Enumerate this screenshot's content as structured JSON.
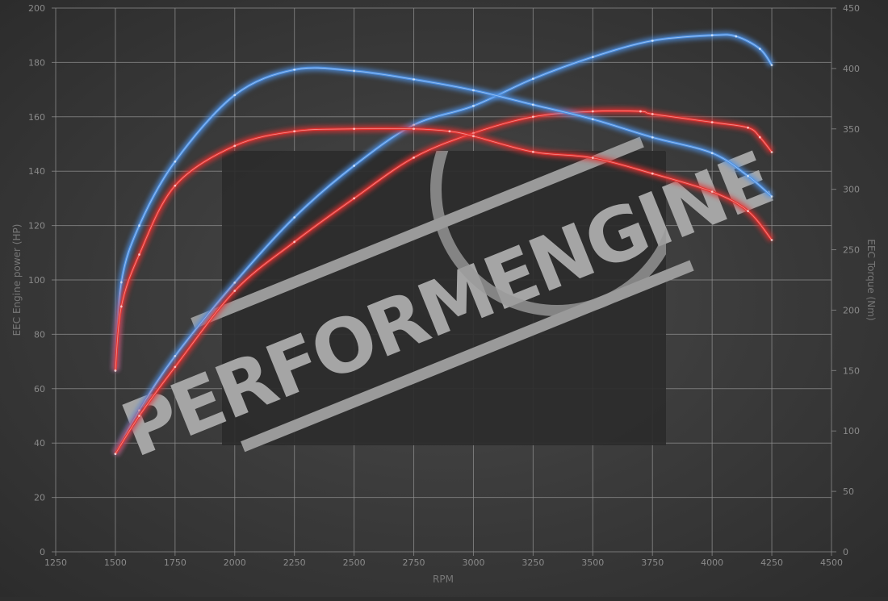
{
  "chart_data": {
    "type": "line",
    "title": "",
    "xlabel": "RPM",
    "ylabel_left": "EEC Engine power (HP)",
    "ylabel_right": "EEC Torque (Nm)",
    "xlim": [
      1250,
      4500
    ],
    "ylim_left": [
      0,
      200
    ],
    "ylim_right": [
      0,
      450
    ],
    "x_ticks": [
      1250,
      1500,
      1750,
      2000,
      2250,
      2500,
      2750,
      3000,
      3250,
      3500,
      3750,
      4000,
      4250,
      4500
    ],
    "y_left_ticks": [
      0,
      20,
      40,
      60,
      80,
      100,
      120,
      140,
      160,
      180,
      200
    ],
    "y_right_ticks": [
      0,
      50,
      100,
      150,
      200,
      250,
      300,
      350,
      400,
      450
    ],
    "grid": true,
    "legend": "none",
    "watermark": "PERFORMENGINE",
    "colors": {
      "tuned": "#4f93e6",
      "stock": "#e53330"
    },
    "series": [
      {
        "axis": "left",
        "color": "#4f93e6",
        "x": [
          1500,
          1600,
          1750,
          2000,
          2250,
          2500,
          2750,
          3000,
          3250,
          3500,
          3750,
          4000,
          4100,
          4200,
          4250
        ],
        "y": [
          36,
          52,
          72,
          99,
          123,
          142,
          157,
          164,
          174,
          182,
          188,
          190,
          189.6,
          185,
          179
        ]
      },
      {
        "axis": "left",
        "color": "#e53330",
        "x": [
          1500,
          1600,
          1750,
          2000,
          2250,
          2500,
          2750,
          3000,
          3250,
          3500,
          3700,
          3750,
          4000,
          4150,
          4200,
          4250
        ],
        "y": [
          36,
          50,
          68,
          96,
          114,
          130,
          145,
          154,
          160,
          162,
          162,
          161,
          158,
          156,
          152.5,
          147
        ]
      },
      {
        "axis": "right",
        "color": "#4f93e6",
        "x": [
          1500,
          1525,
          1600,
          1750,
          2000,
          2250,
          2500,
          2750,
          3000,
          3250,
          3500,
          3750,
          4000,
          4150,
          4250
        ],
        "y": [
          150,
          223,
          270,
          323,
          378,
          399,
          398,
          391,
          382,
          370,
          358,
          343,
          330,
          311,
          294
        ]
      },
      {
        "axis": "right",
        "color": "#e53330",
        "x": [
          1500,
          1525,
          1600,
          1750,
          2000,
          2250,
          2500,
          2750,
          2900,
          3000,
          3250,
          3500,
          3750,
          4000,
          4150,
          4250
        ],
        "y": [
          150,
          203,
          246,
          303,
          336,
          348,
          350,
          350,
          348,
          344,
          331,
          326,
          313,
          298,
          282,
          258
        ]
      }
    ]
  }
}
